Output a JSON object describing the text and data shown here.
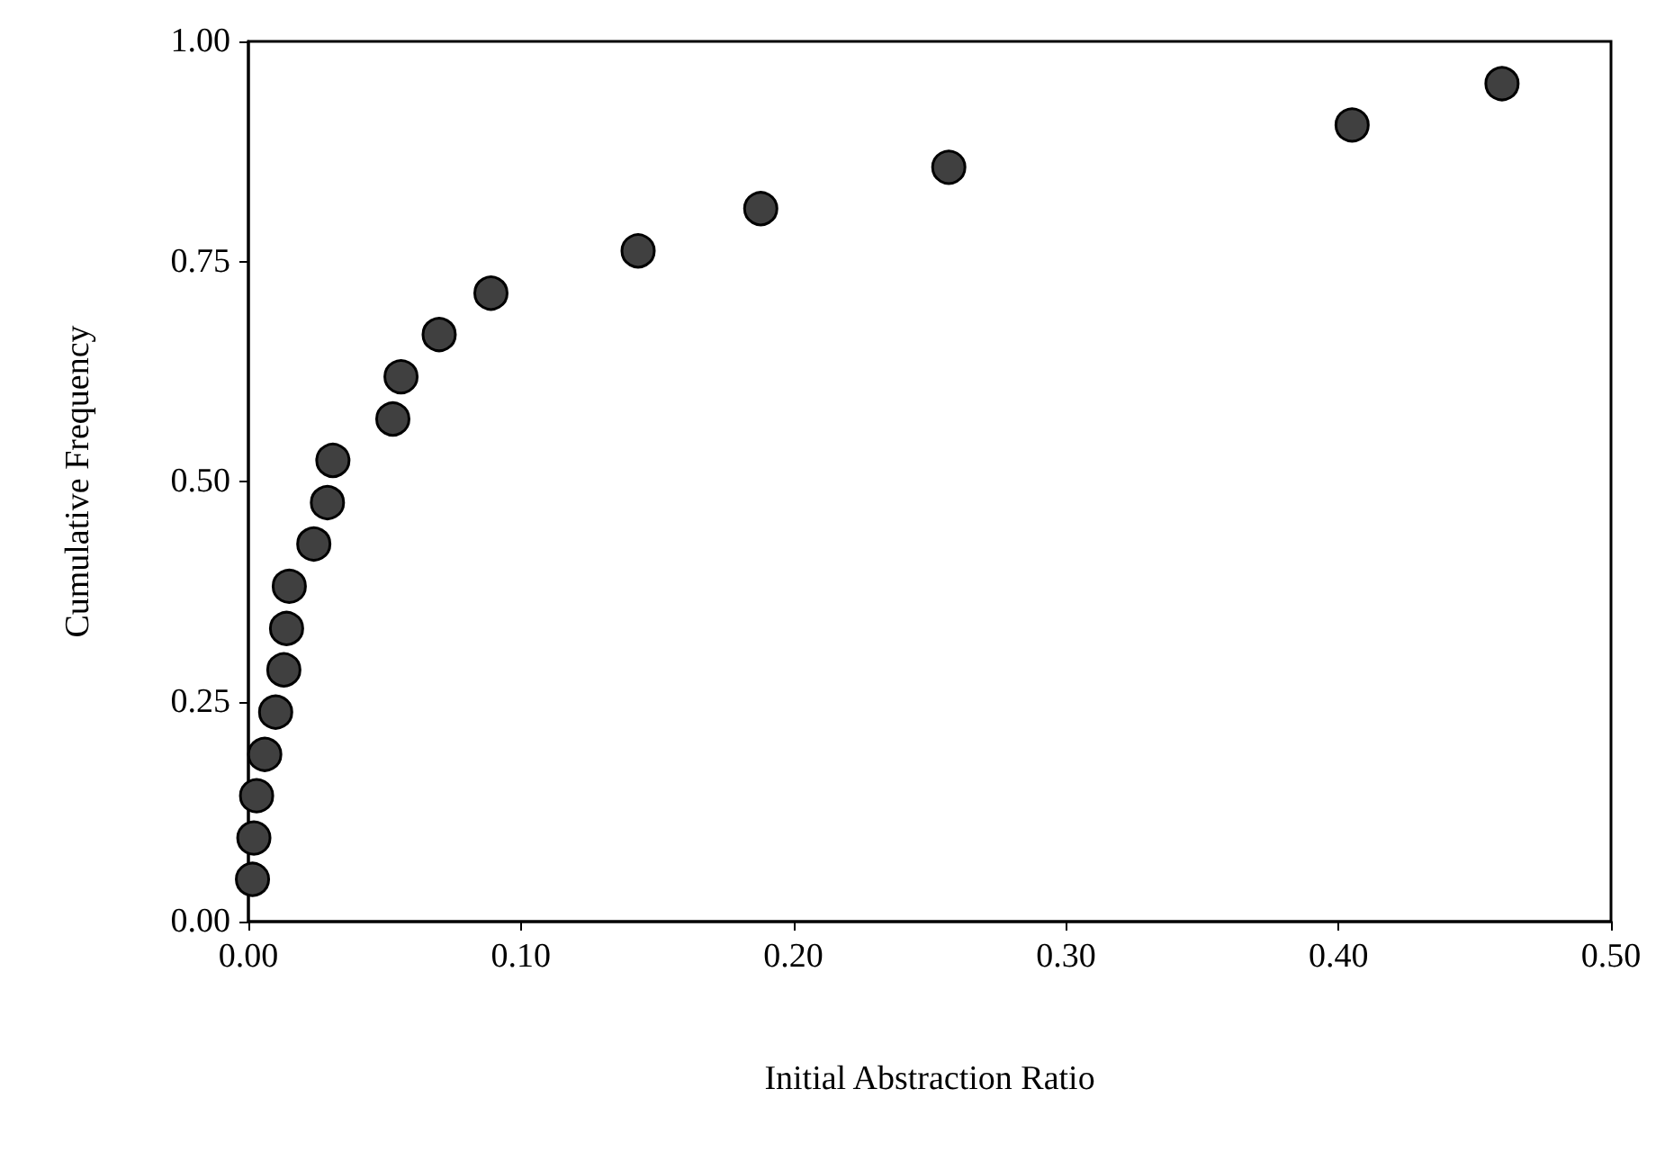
{
  "chart_data": {
    "type": "scatter",
    "xlabel": "Initial Abstraction Ratio",
    "ylabel": "Cumulative Frequency",
    "x": [
      0.0015,
      0.002,
      0.003,
      0.006,
      0.01,
      0.013,
      0.014,
      0.015,
      0.024,
      0.029,
      0.031,
      0.053,
      0.056,
      0.07,
      0.089,
      0.143,
      0.188,
      0.257,
      0.405,
      0.46
    ],
    "values": [
      0.048,
      0.095,
      0.143,
      0.19,
      0.238,
      0.286,
      0.333,
      0.381,
      0.429,
      0.476,
      0.524,
      0.571,
      0.619,
      0.667,
      0.714,
      0.762,
      0.81,
      0.857,
      0.905,
      0.952
    ],
    "color": "#404040",
    "marker": "circle",
    "xlim": [
      0,
      0.5
    ],
    "xticks": [
      {
        "value": 0,
        "label": "0.00"
      },
      {
        "value": 0.1,
        "label": "0.10"
      },
      {
        "value": 0.2,
        "label": "0.20"
      },
      {
        "value": 0.3,
        "label": "0.30"
      },
      {
        "value": 0.4,
        "label": "0.40"
      },
      {
        "value": 0.5,
        "label": "0.50"
      }
    ],
    "ylim": [
      0,
      1
    ],
    "yticks": [
      {
        "value": 0,
        "label": "0.00"
      },
      {
        "value": 0.25,
        "label": "0.25"
      },
      {
        "value": 0.5,
        "label": "0.50"
      },
      {
        "value": 0.75,
        "label": "0.75"
      },
      {
        "value": 1,
        "label": "1.00"
      }
    ]
  }
}
